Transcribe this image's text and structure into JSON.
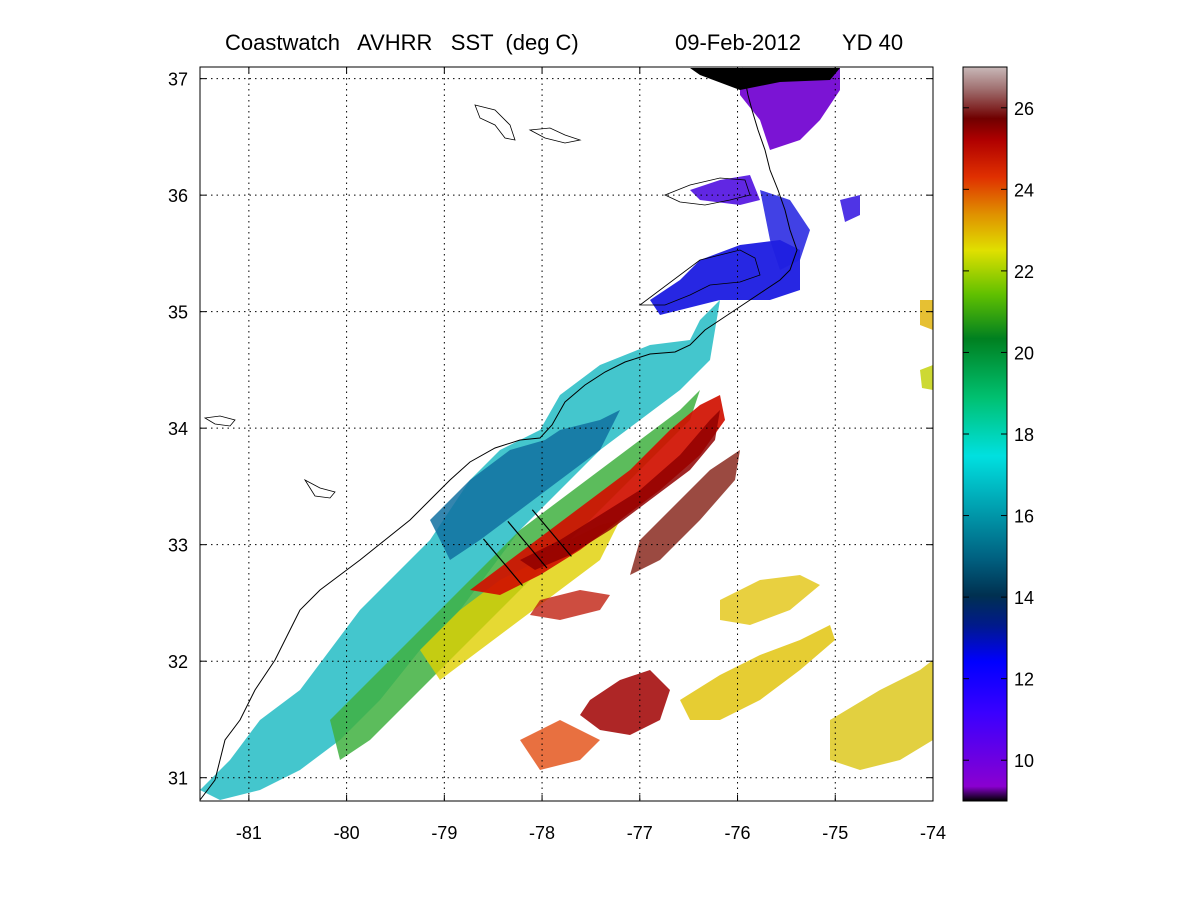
{
  "title": {
    "left": "Coastwatch   AVHRR   SST  (deg C)",
    "date": "09-Feb-2012",
    "yearday": "YD 40"
  },
  "chart_data": {
    "type": "heatmap",
    "xlim": [
      -81.5,
      -74
    ],
    "ylim": [
      30.8,
      37.1
    ],
    "x_ticks": [
      "-81",
      "-80",
      "-79",
      "-78",
      "-77",
      "-76",
      "-75",
      "-74"
    ],
    "x_tick_values": [
      -81,
      -80,
      -79,
      -78,
      -77,
      -76,
      -75,
      -74
    ],
    "y_ticks": [
      "31",
      "32",
      "33",
      "34",
      "35",
      "36",
      "37"
    ],
    "y_tick_values": [
      31,
      32,
      33,
      34,
      35,
      36,
      37
    ],
    "grid": "dotted",
    "colorbar": {
      "range": [
        9,
        27
      ],
      "tick_labels": [
        "10",
        "12",
        "14",
        "16",
        "18",
        "20",
        "22",
        "24",
        "26"
      ],
      "tick_values": [
        10,
        12,
        14,
        16,
        18,
        20,
        22,
        24,
        26
      ]
    },
    "transects": [
      {
        "start": [
          -78.6,
          33.05
        ],
        "end": [
          -78.2,
          32.65
        ]
      },
      {
        "start": [
          -78.35,
          33.2
        ],
        "end": [
          -77.95,
          32.8
        ]
      },
      {
        "start": [
          -78.1,
          33.3
        ],
        "end": [
          -77.7,
          32.9
        ]
      }
    ]
  },
  "colors": {
    "cold": "#8000c0",
    "cool": "#0000ff",
    "mid": "#00c8c8",
    "warm": "#e0e000",
    "hot": "#c80000"
  }
}
